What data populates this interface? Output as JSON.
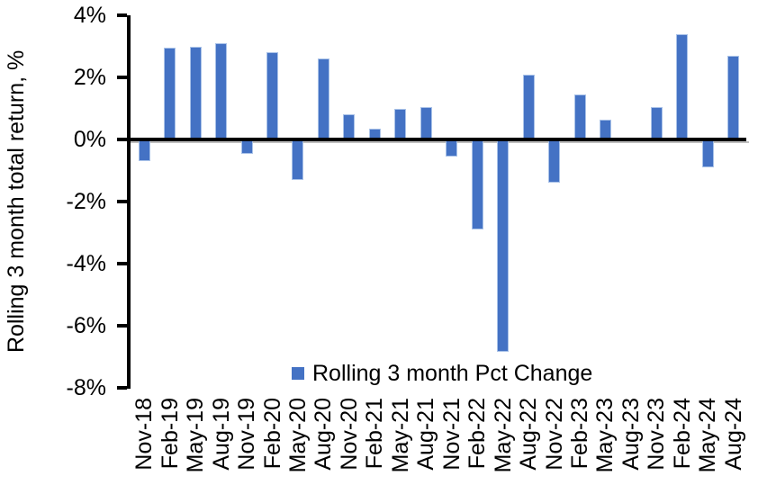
{
  "chart_data": {
    "type": "bar",
    "title": "",
    "xlabel": "",
    "ylabel": "Rolling 3 month total return, %",
    "categories": [
      "Nov-18",
      "Feb-19",
      "May-19",
      "Aug-19",
      "Nov-19",
      "Feb-20",
      "May-20",
      "Aug-20",
      "Nov-20",
      "Feb-21",
      "May-21",
      "Aug-21",
      "Nov-21",
      "Feb-22",
      "May-22",
      "Aug-22",
      "Nov-22",
      "Feb-23",
      "May-23",
      "Aug-23",
      "Nov-23",
      "Feb-24",
      "May-24",
      "Aug-24"
    ],
    "values": [
      -0.7,
      2.95,
      3.0,
      3.1,
      -0.45,
      2.8,
      -1.3,
      2.6,
      0.8,
      0.35,
      1.0,
      1.05,
      -0.55,
      -2.9,
      -6.85,
      2.1,
      -1.4,
      1.45,
      0.65,
      0.0,
      1.05,
      3.4,
      -0.9,
      2.7
    ],
    "ylim": [
      -8,
      4
    ],
    "yticks": [
      4,
      2,
      0,
      -2,
      -4,
      -6,
      -8
    ],
    "ytick_labels": [
      "4%",
      "2%",
      "0%",
      "-2%",
      "-4%",
      "-6%",
      "-8%"
    ],
    "grid": false,
    "legend": {
      "label": "Rolling 3 month Pct Change",
      "position": "bottom-center"
    },
    "colors": {
      "bar_fill": "#4472C4",
      "bar_edge": "#A9C2E8",
      "axis": "#000000",
      "axis_shadow": "#BFBFBF",
      "text": "#000000",
      "background": "#FFFFFF"
    }
  }
}
